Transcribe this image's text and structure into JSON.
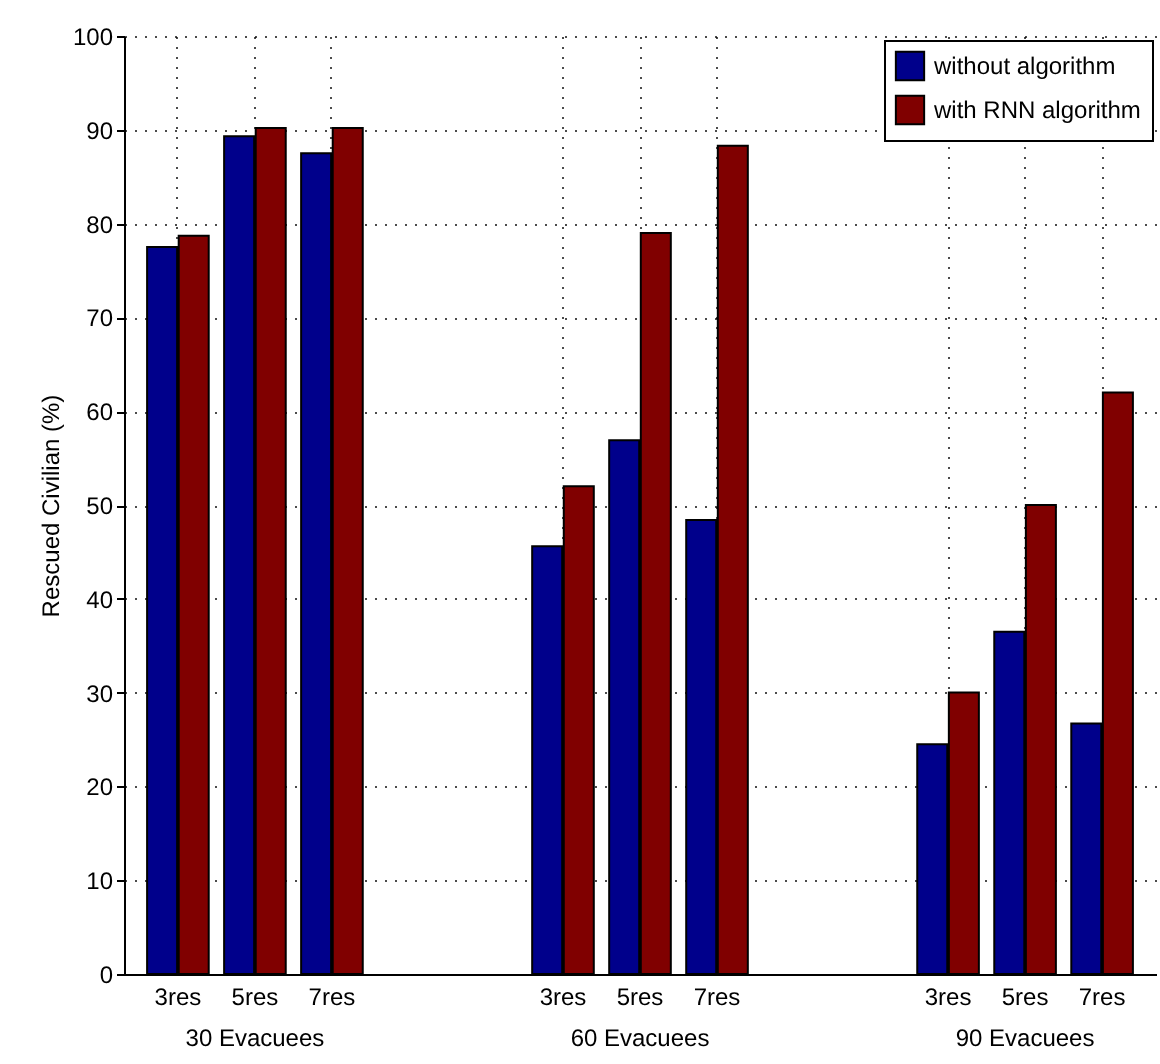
{
  "chart_data": {
    "type": "bar",
    "ylabel": "Rescued Civilian (%)",
    "categories": [
      "3res",
      "5res",
      "7res",
      null,
      null,
      "3res",
      "5res",
      "7res",
      null,
      null,
      "3res",
      "5res",
      "7res"
    ],
    "series": [
      {
        "name": "without algorithm",
        "color": "#00008b",
        "values": [
          77.5,
          89.3,
          87.5,
          null,
          null,
          45.6,
          56.9,
          48.4,
          null,
          null,
          24.5,
          36.5,
          26.7
        ]
      },
      {
        "name": "with RNN algorithm",
        "color": "#800000",
        "values": [
          78.7,
          90.2,
          90.2,
          null,
          null,
          52,
          79,
          88.3,
          null,
          null,
          30,
          50,
          62
        ]
      }
    ],
    "annotations": [
      "30 Evacuees",
      "60 Evacuees",
      "90 Evacuees"
    ],
    "ylim": [
      0,
      100
    ],
    "yticks": [
      0,
      10,
      20,
      30,
      40,
      50,
      60,
      70,
      80,
      90,
      100
    ],
    "grid": true,
    "legend": "top right"
  }
}
